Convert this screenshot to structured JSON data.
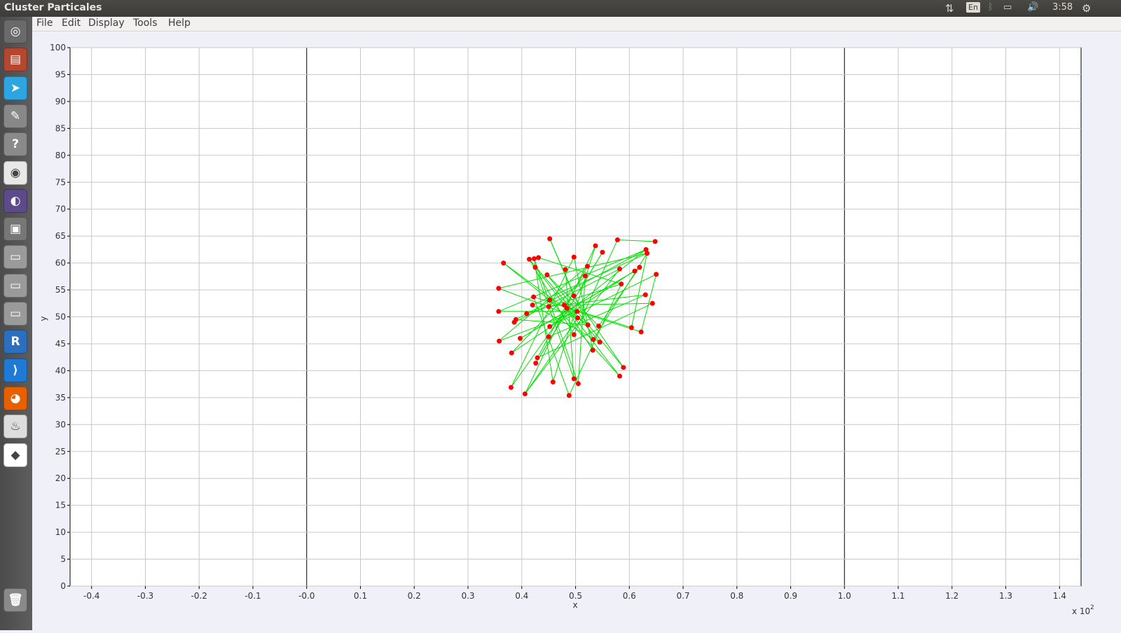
{
  "window": {
    "title": "Cluster Particales"
  },
  "indicators": {
    "lang": "En",
    "clock": "3:58"
  },
  "menu": [
    "File",
    "Edit",
    "Display",
    "Tools",
    "Help"
  ],
  "launcher": [
    {
      "name": "ubuntu-dash-icon",
      "color": "#6a6a6a",
      "glyph": "◎"
    },
    {
      "name": "files-icon",
      "color": "#b5462f",
      "glyph": "▤"
    },
    {
      "name": "telegram-icon",
      "color": "#2ca5e0",
      "glyph": "➤"
    },
    {
      "name": "settings-tools-icon",
      "color": "#888",
      "glyph": "✎"
    },
    {
      "name": "help-icon",
      "color": "#8a8a8a",
      "glyph": "?"
    },
    {
      "name": "chrome-icon",
      "color": "#e8e8e8",
      "glyph": "◉"
    },
    {
      "name": "eclipse-icon",
      "color": "#5d4a8a",
      "glyph": "◐"
    },
    {
      "name": "window-icon",
      "color": "#777",
      "glyph": "▣"
    },
    {
      "name": "drive-icon",
      "color": "#9a9a9a",
      "glyph": "▭"
    },
    {
      "name": "drive-icon",
      "color": "#9a9a9a",
      "glyph": "▭"
    },
    {
      "name": "drive-icon",
      "color": "#9a9a9a",
      "glyph": "▭"
    },
    {
      "name": "r-icon",
      "color": "#2c6fbf",
      "glyph": "R"
    },
    {
      "name": "vscode-icon",
      "color": "#1f7ad6",
      "glyph": "⟩"
    },
    {
      "name": "firefox-icon",
      "color": "#e66000",
      "glyph": "◕"
    },
    {
      "name": "java-app-icon",
      "color": "#ddd",
      "glyph": "♨"
    },
    {
      "name": "cluster-app-icon",
      "color": "#ffffff",
      "glyph": "◆"
    }
  ],
  "trash": {
    "name": "trash-icon",
    "color": "#8a8a8a",
    "glyph": "🗑"
  },
  "chart_data": {
    "type": "scatter",
    "xlabel": "x",
    "ylabel": "y",
    "x_multiplier": "x 10",
    "x_multiplier_exp": "2",
    "xlim": [
      -0.44,
      1.44
    ],
    "ylim": [
      0,
      100
    ],
    "x_ticks": [
      -0.4,
      -0.3,
      -0.2,
      -0.1,
      0.0,
      0.1,
      0.2,
      0.3,
      0.4,
      0.5,
      0.6,
      0.7,
      0.8,
      0.9,
      1.0,
      1.1,
      1.2,
      1.3,
      1.4
    ],
    "x_tick_labels": [
      "-0.4",
      "-0.3",
      "-0.2",
      "-0.1",
      "-0.0",
      "0.1",
      "0.2",
      "0.3",
      "0.4",
      "0.5",
      "0.6",
      "0.7",
      "0.8",
      "0.9",
      "1.0",
      "1.1",
      "1.2",
      "1.3",
      "1.4"
    ],
    "y_ticks": [
      0,
      5,
      10,
      15,
      20,
      25,
      30,
      35,
      40,
      45,
      50,
      55,
      60,
      65,
      70,
      75,
      80,
      85,
      90,
      95,
      100
    ],
    "x_emphasis": [
      0.0,
      1.0
    ],
    "grid": true,
    "point_color": "#ff0000",
    "line_color": "#00e000",
    "points": [
      [
        0.452,
        64.5
      ],
      [
        0.578,
        64.3
      ],
      [
        0.648,
        64.0
      ],
      [
        0.537,
        63.2
      ],
      [
        0.631,
        62.5
      ],
      [
        0.55,
        62.0
      ],
      [
        0.633,
        61.8
      ],
      [
        0.497,
        61.1
      ],
      [
        0.431,
        61.0
      ],
      [
        0.423,
        60.8
      ],
      [
        0.414,
        60.7
      ],
      [
        0.366,
        60.0
      ],
      [
        0.522,
        59.4
      ],
      [
        0.425,
        59.2
      ],
      [
        0.619,
        59.2
      ],
      [
        0.582,
        58.9
      ],
      [
        0.481,
        58.8
      ],
      [
        0.61,
        58.5
      ],
      [
        0.65,
        57.9
      ],
      [
        0.447,
        57.8
      ],
      [
        0.518,
        57.6
      ],
      [
        0.585,
        56.1
      ],
      [
        0.357,
        55.3
      ],
      [
        0.63,
        54.1
      ],
      [
        0.497,
        53.9
      ],
      [
        0.422,
        53.7
      ],
      [
        0.452,
        53.1
      ],
      [
        0.643,
        52.5
      ],
      [
        0.42,
        52.2
      ],
      [
        0.479,
        52.2
      ],
      [
        0.45,
        51.9
      ],
      [
        0.484,
        51.6
      ],
      [
        0.357,
        51.0
      ],
      [
        0.503,
        51.0
      ],
      [
        0.409,
        50.6
      ],
      [
        0.389,
        49.5
      ],
      [
        0.504,
        49.8
      ],
      [
        0.386,
        49.0
      ],
      [
        0.523,
        48.5
      ],
      [
        0.543,
        48.3
      ],
      [
        0.452,
        48.2
      ],
      [
        0.604,
        48.0
      ],
      [
        0.622,
        47.2
      ],
      [
        0.497,
        46.7
      ],
      [
        0.45,
        46.3
      ],
      [
        0.533,
        45.8
      ],
      [
        0.397,
        46.0
      ],
      [
        0.358,
        45.5
      ],
      [
        0.545,
        45.3
      ],
      [
        0.532,
        43.8
      ],
      [
        0.381,
        43.3
      ],
      [
        0.429,
        42.4
      ],
      [
        0.426,
        41.4
      ],
      [
        0.589,
        40.6
      ],
      [
        0.582,
        39.0
      ],
      [
        0.497,
        38.5
      ],
      [
        0.458,
        37.9
      ],
      [
        0.505,
        37.6
      ],
      [
        0.38,
        36.9
      ],
      [
        0.406,
        35.7
      ],
      [
        0.488,
        35.4
      ]
    ],
    "segments": [
      [
        0.452,
        64.5,
        0.497,
        53.9
      ],
      [
        0.578,
        64.3,
        0.648,
        64.0
      ],
      [
        0.633,
        61.8,
        0.42,
        52.2
      ],
      [
        0.631,
        62.5,
        0.389,
        49.5
      ],
      [
        0.631,
        62.5,
        0.452,
        48.2
      ],
      [
        0.633,
        61.8,
        0.533,
        45.8
      ],
      [
        0.366,
        60.0,
        0.452,
        53.1
      ],
      [
        0.357,
        55.3,
        0.633,
        61.8
      ],
      [
        0.357,
        51.0,
        0.631,
        62.5
      ],
      [
        0.357,
        45.5,
        0.522,
        59.4
      ],
      [
        0.431,
        61.0,
        0.585,
        56.1
      ],
      [
        0.425,
        59.2,
        0.582,
        39.0
      ],
      [
        0.414,
        60.7,
        0.497,
        46.7
      ],
      [
        0.423,
        60.8,
        0.458,
        37.9
      ],
      [
        0.537,
        63.2,
        0.406,
        35.7
      ],
      [
        0.55,
        62.0,
        0.426,
        41.4
      ],
      [
        0.497,
        61.1,
        0.38,
        36.9
      ],
      [
        0.522,
        59.4,
        0.429,
        42.4
      ],
      [
        0.619,
        59.2,
        0.381,
        43.3
      ],
      [
        0.582,
        58.9,
        0.386,
        49.0
      ],
      [
        0.61,
        58.5,
        0.397,
        46.0
      ],
      [
        0.65,
        57.9,
        0.452,
        48.2
      ],
      [
        0.65,
        57.9,
        0.622,
        47.2
      ],
      [
        0.447,
        57.8,
        0.543,
        48.3
      ],
      [
        0.518,
        57.6,
        0.505,
        37.6
      ],
      [
        0.585,
        56.1,
        0.488,
        35.4
      ],
      [
        0.63,
        54.1,
        0.45,
        51.9
      ],
      [
        0.643,
        52.5,
        0.479,
        52.2
      ],
      [
        0.497,
        53.9,
        0.589,
        40.6
      ],
      [
        0.422,
        53.7,
        0.604,
        48.0
      ],
      [
        0.452,
        53.1,
        0.582,
        39.0
      ],
      [
        0.42,
        52.2,
        0.545,
        45.3
      ],
      [
        0.479,
        52.2,
        0.532,
        43.8
      ],
      [
        0.484,
        51.6,
        0.622,
        47.2
      ],
      [
        0.503,
        51.0,
        0.357,
        45.5
      ],
      [
        0.409,
        50.6,
        0.585,
        56.1
      ],
      [
        0.504,
        49.8,
        0.406,
        35.7
      ],
      [
        0.523,
        48.5,
        0.366,
        60.0
      ],
      [
        0.543,
        48.3,
        0.619,
        59.2
      ],
      [
        0.604,
        48.0,
        0.633,
        61.8
      ],
      [
        0.497,
        46.7,
        0.578,
        64.3
      ],
      [
        0.45,
        46.3,
        0.63,
        54.1
      ],
      [
        0.533,
        45.8,
        0.452,
        64.5
      ],
      [
        0.397,
        46.0,
        0.61,
        58.5
      ],
      [
        0.545,
        45.3,
        0.414,
        60.7
      ],
      [
        0.532,
        43.8,
        0.497,
        61.1
      ],
      [
        0.381,
        43.3,
        0.518,
        57.6
      ],
      [
        0.429,
        42.4,
        0.643,
        52.5
      ],
      [
        0.426,
        41.4,
        0.55,
        62.0
      ],
      [
        0.589,
        40.6,
        0.447,
        57.8
      ],
      [
        0.497,
        38.5,
        0.425,
        59.2
      ],
      [
        0.458,
        37.9,
        0.537,
        63.2
      ],
      [
        0.505,
        37.6,
        0.423,
        60.8
      ],
      [
        0.38,
        36.9,
        0.484,
        51.6
      ],
      [
        0.406,
        35.7,
        0.582,
        58.9
      ],
      [
        0.488,
        35.4,
        0.422,
        53.7
      ],
      [
        0.357,
        51.0,
        0.503,
        51.0
      ],
      [
        0.357,
        55.3,
        0.504,
        49.8
      ],
      [
        0.389,
        49.5,
        0.523,
        48.5
      ],
      [
        0.481,
        58.8,
        0.497,
        38.5
      ]
    ]
  }
}
